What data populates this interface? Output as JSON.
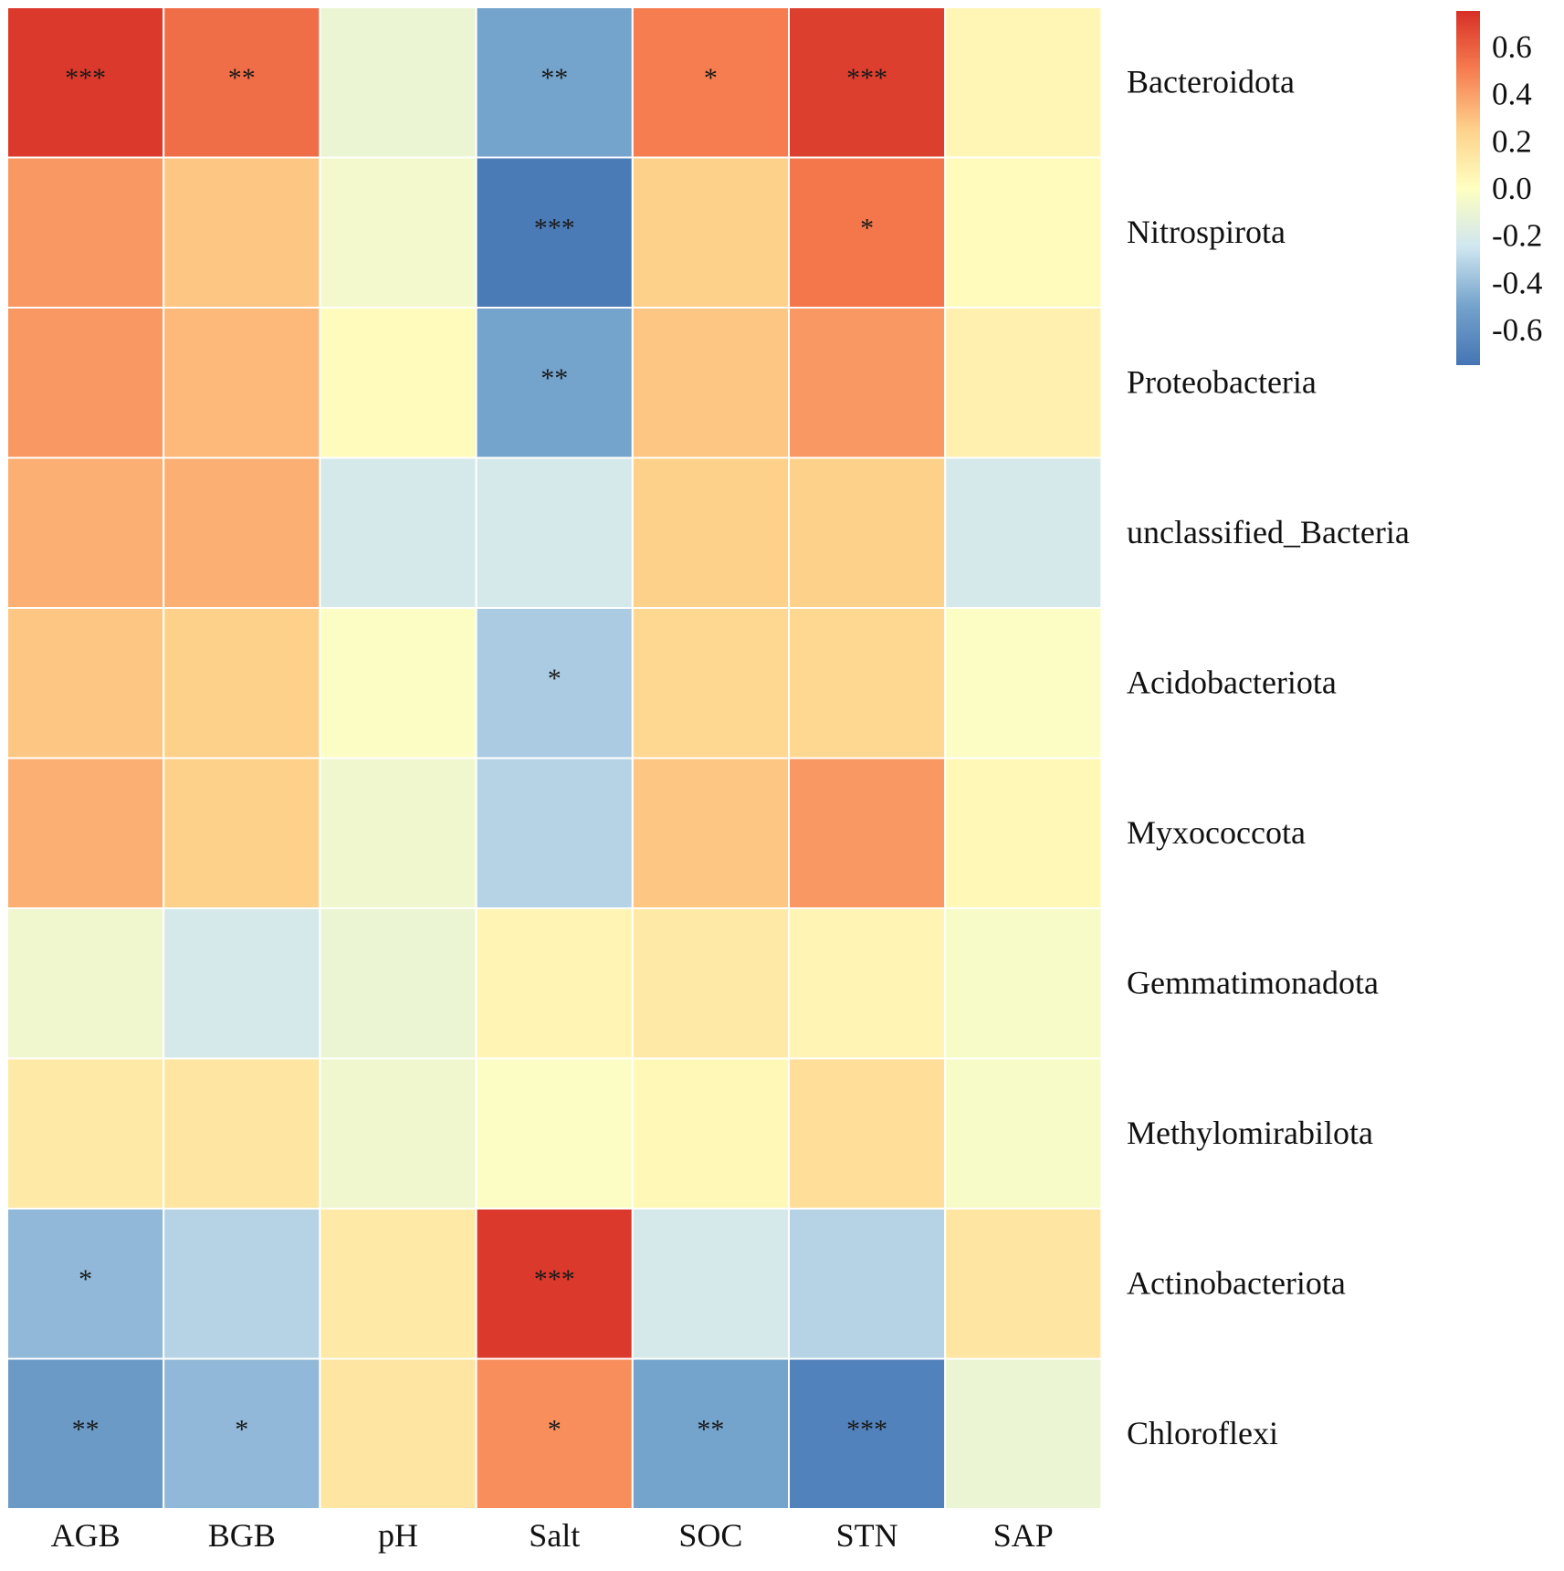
{
  "chart_data": {
    "type": "heatmap",
    "title": "",
    "columns": [
      "AGB",
      "BGB",
      "pH",
      "Salt",
      "SOC",
      "STN",
      "SAP"
    ],
    "rows": [
      "Bacteroidota",
      "Nitrospirota",
      "Proteobacteria",
      "unclassified_Bacteria",
      "Acidobacteriota",
      "Myxococcota",
      "Gemmatimonadota",
      "Methylomirabilota",
      "Actinobacteriota",
      "Chloroflexi"
    ],
    "values": [
      [
        0.72,
        0.55,
        -0.1,
        -0.5,
        0.5,
        0.7,
        0.05
      ],
      [
        0.42,
        0.28,
        -0.06,
        -0.72,
        0.25,
        0.52,
        0.02
      ],
      [
        0.42,
        0.32,
        0.02,
        -0.5,
        0.28,
        0.42,
        0.08
      ],
      [
        0.35,
        0.35,
        -0.22,
        -0.22,
        0.25,
        0.25,
        -0.22
      ],
      [
        0.28,
        0.25,
        -0.02,
        -0.35,
        0.22,
        0.22,
        -0.02
      ],
      [
        0.35,
        0.25,
        -0.08,
        -0.32,
        0.28,
        0.42,
        0.04
      ],
      [
        -0.08,
        -0.22,
        -0.1,
        0.06,
        0.12,
        0.06,
        -0.04
      ],
      [
        0.12,
        0.14,
        -0.08,
        -0.02,
        0.04,
        0.18,
        -0.04
      ],
      [
        -0.42,
        -0.32,
        0.12,
        0.72,
        -0.22,
        -0.32,
        0.14
      ],
      [
        -0.55,
        -0.42,
        0.14,
        0.45,
        -0.5,
        -0.68,
        -0.1
      ]
    ],
    "significance": [
      [
        "***",
        "**",
        "",
        "**",
        "*",
        "***",
        ""
      ],
      [
        "",
        "",
        "",
        "***",
        "",
        "*",
        ""
      ],
      [
        "",
        "",
        "",
        "**",
        "",
        "",
        ""
      ],
      [
        "",
        "",
        "",
        "",
        "",
        "",
        ""
      ],
      [
        "",
        "",
        "",
        "*",
        "",
        "",
        ""
      ],
      [
        "",
        "",
        "",
        "",
        "",
        "",
        ""
      ],
      [
        "",
        "",
        "",
        "",
        "",
        "",
        ""
      ],
      [
        "",
        "",
        "",
        "",
        "",
        "",
        ""
      ],
      [
        "*",
        "",
        "",
        "***",
        "",
        "",
        ""
      ],
      [
        "**",
        "*",
        "",
        "*",
        "**",
        "***",
        ""
      ]
    ],
    "color_scale": {
      "range": [
        -0.75,
        0.75
      ],
      "stops": [
        {
          "value": -0.75,
          "color": "#4575B4"
        },
        {
          "value": -0.5,
          "color": "#74A3CC"
        },
        {
          "value": -0.25,
          "color": "#CFE6F0"
        },
        {
          "value": 0.0,
          "color": "#FFFFC0"
        },
        {
          "value": 0.25,
          "color": "#FED18A"
        },
        {
          "value": 0.5,
          "color": "#F67D4F"
        },
        {
          "value": 0.75,
          "color": "#D73027"
        }
      ],
      "ticks": [
        0.6,
        0.4,
        0.2,
        0.0,
        -0.2,
        -0.4,
        -0.6
      ],
      "tick_labels": [
        "0.6",
        "0.4",
        "0.2",
        "0.0",
        "-0.2",
        "-0.4",
        "-0.6"
      ]
    },
    "legend": "top-right",
    "cell_border_color": "#ffffff"
  }
}
